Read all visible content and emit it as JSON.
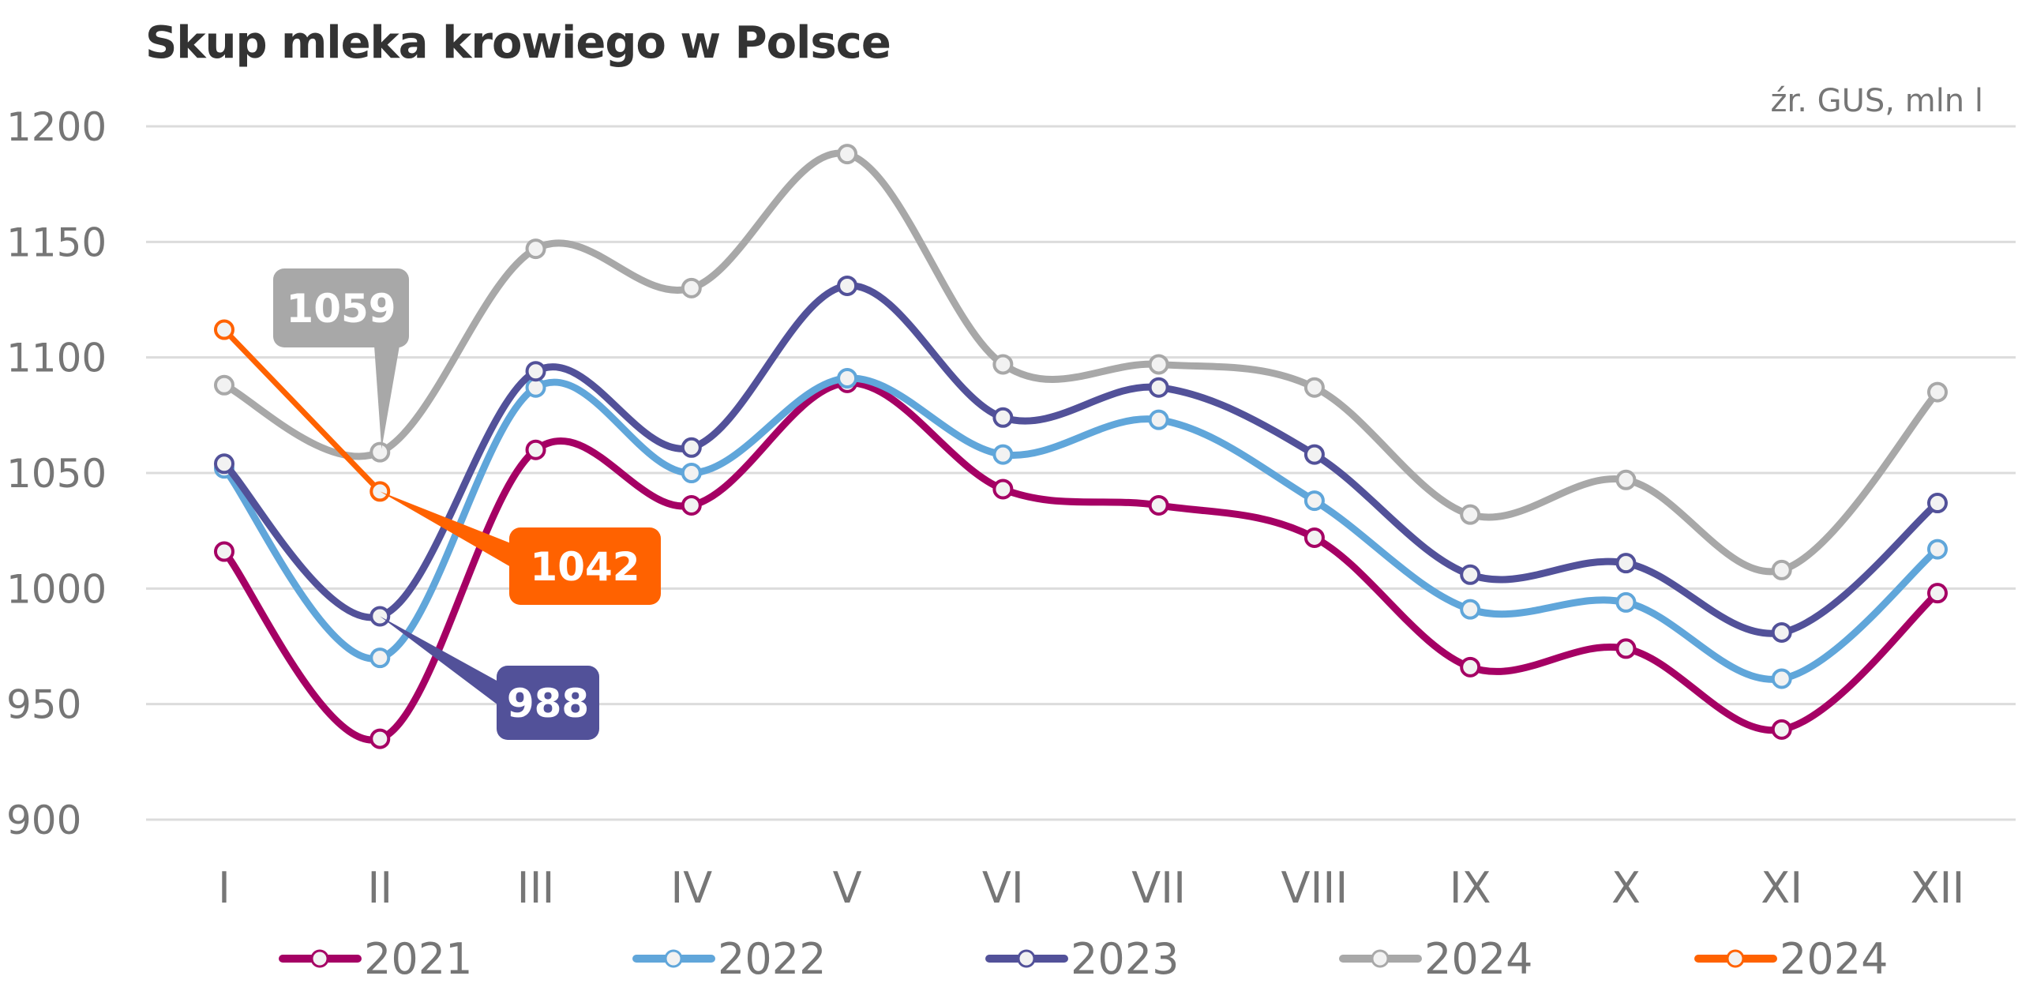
{
  "chart_data": {
    "type": "line",
    "title": "Skup mleka krowiego w Polsce",
    "subtitle": "źr. GUS, mln l",
    "xlabel": "",
    "ylabel": "",
    "categories": [
      "I",
      "II",
      "III",
      "IV",
      "V",
      "VI",
      "VII",
      "VIII",
      "IX",
      "X",
      "XI",
      "XII"
    ],
    "ylim": [
      900,
      1200
    ],
    "yticks": [
      900,
      950,
      1000,
      1050,
      1100,
      1150,
      1200
    ],
    "grid": true,
    "smooth": true,
    "legend_position": "bottom",
    "series": [
      {
        "name": "2021",
        "color": "#A50064",
        "values": [
          1016,
          935,
          1060,
          1036,
          1089,
          1043,
          1036,
          1022,
          966,
          974,
          939,
          998
        ]
      },
      {
        "name": "2022",
        "color": "#60A6DA",
        "values": [
          1052,
          970,
          1087,
          1050,
          1091,
          1058,
          1073,
          1038,
          991,
          994,
          961,
          1017
        ]
      },
      {
        "name": "2023",
        "color": "#525199",
        "values": [
          1054,
          988,
          1094,
          1061,
          1131,
          1074,
          1087,
          1058,
          1006,
          1011,
          981,
          1037
        ]
      },
      {
        "name": "2024",
        "color": "#A8A8A8",
        "values": [
          1088,
          1059,
          1147,
          1130,
          1188,
          1097,
          1097,
          1087,
          1032,
          1047,
          1008,
          1085
        ]
      },
      {
        "name": "2024",
        "color": "#FF6200",
        "values": [
          1112,
          1042,
          null,
          null,
          null,
          null,
          null,
          null,
          null,
          null,
          null,
          null
        ],
        "smooth": false
      }
    ],
    "annotations": [
      {
        "text": "1059",
        "series": 3,
        "category": "II",
        "color": "#A8A8A8"
      },
      {
        "text": "1042",
        "series": 4,
        "category": "II",
        "color": "#FF6200"
      },
      {
        "text": "988",
        "series": 2,
        "category": "II",
        "color": "#525199"
      }
    ]
  }
}
